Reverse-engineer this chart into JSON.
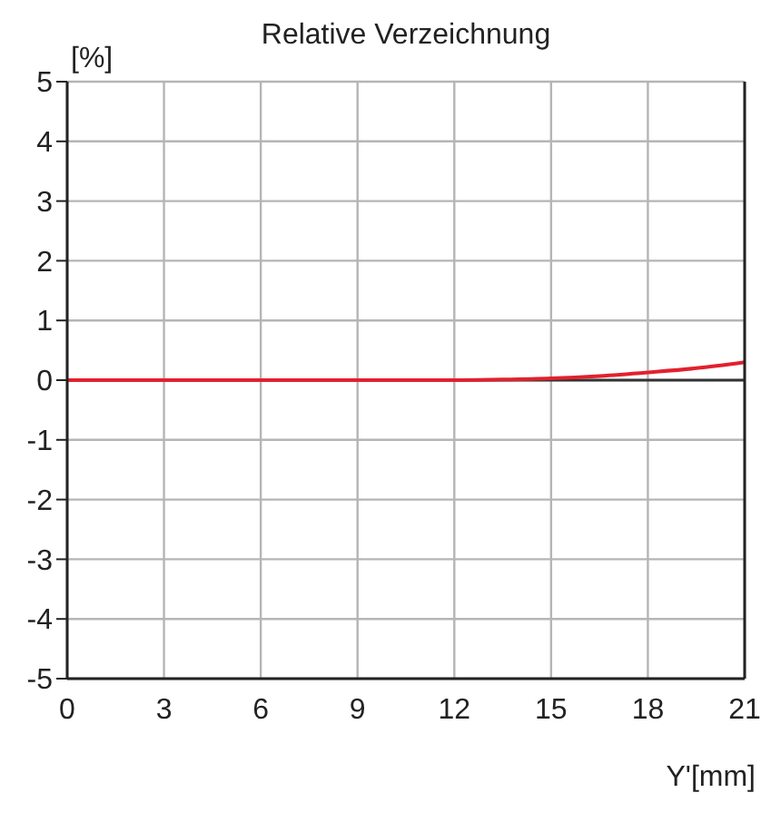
{
  "chart_data": {
    "type": "line",
    "title": "Relative Verzeichnung",
    "xlabel": "Y'[mm]",
    "ylabel": "[%]",
    "x": [
      0,
      3,
      6,
      9,
      12,
      13.5,
      15,
      16.5,
      18,
      19.5,
      21
    ],
    "series": [
      {
        "color": "#e3202e",
        "values": [
          0,
          0,
          0,
          0,
          0,
          0.01,
          0.03,
          0.07,
          0.13,
          0.2,
          0.3
        ]
      }
    ],
    "xlim": [
      0,
      21
    ],
    "xticks": [
      0,
      3,
      6,
      9,
      12,
      15,
      18,
      21
    ],
    "ylim": [
      -5,
      5
    ],
    "yticks": [
      -5,
      -4,
      -3,
      -2,
      -1,
      0,
      1,
      2,
      3,
      4,
      5
    ],
    "ref_lines": [
      {
        "axis": "y",
        "value": 0,
        "color": "#333333"
      }
    ],
    "grid": true,
    "marker": "none",
    "line_style": "solid"
  }
}
